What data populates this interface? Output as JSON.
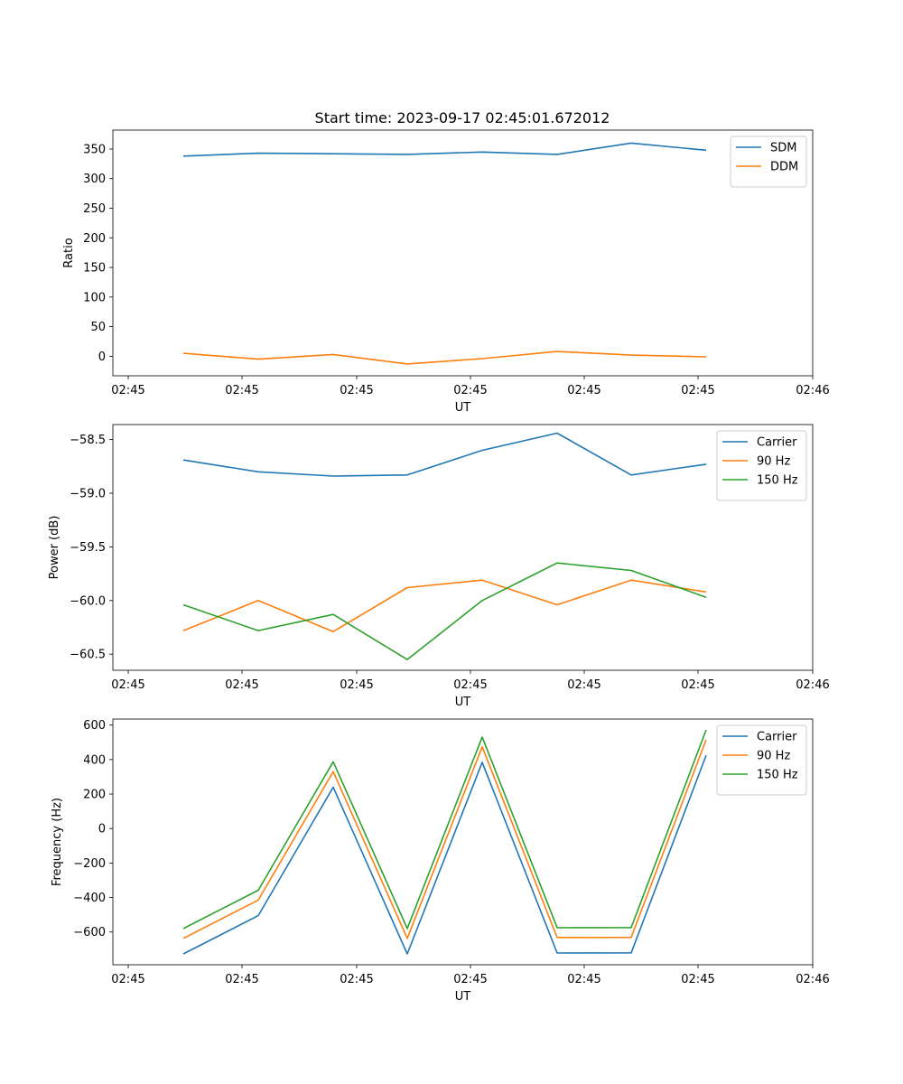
{
  "figure": {
    "title": "Start time: 2023-09-17 02:45:01.672012",
    "colors": {
      "blue": "#1f77b4",
      "orange": "#ff7f0e",
      "green": "#2ca02c"
    }
  },
  "chart_data": [
    {
      "type": "line",
      "title": "Start time: 2023-09-17 02:45:01.672012",
      "xlabel": "UT",
      "ylabel": "Ratio",
      "xtick_labels": [
        "02:45",
        "02:45",
        "02:45",
        "02:45",
        "02:45",
        "02:45",
        "02:46"
      ],
      "ylim": [
        -33,
        382
      ],
      "yticks": [
        0,
        50,
        100,
        150,
        200,
        250,
        300,
        350
      ],
      "ytick_labels": [
        "0",
        "50",
        "100",
        "150",
        "200",
        "250",
        "300",
        "350"
      ],
      "legend_position": "upper-right",
      "series": [
        {
          "name": "SDM",
          "color": "#1f77b4",
          "values": [
            338,
            343,
            342,
            341,
            345,
            341,
            360,
            348
          ]
        },
        {
          "name": "DDM",
          "color": "#ff7f0e",
          "values": [
            5,
            -5,
            3,
            -13,
            -4,
            8,
            2,
            -1
          ]
        }
      ]
    },
    {
      "type": "line",
      "title": "",
      "xlabel": "UT",
      "ylabel": "Power (dB)",
      "xtick_labels": [
        "02:45",
        "02:45",
        "02:45",
        "02:45",
        "02:45",
        "02:45",
        "02:46"
      ],
      "ylim": [
        -60.65,
        -58.36
      ],
      "yticks": [
        -58.5,
        -59.0,
        -59.5,
        -60.0,
        -60.5
      ],
      "ytick_labels": [
        "−58.5",
        "−59.0",
        "−59.5",
        "−60.0",
        "−60.5"
      ],
      "legend_position": "upper-right",
      "series": [
        {
          "name": "Carrier",
          "color": "#1f77b4",
          "values": [
            -58.69,
            -58.8,
            -58.84,
            -58.83,
            -58.6,
            -58.44,
            -58.83,
            -58.73
          ]
        },
        {
          "name": "90 Hz",
          "color": "#ff7f0e",
          "values": [
            -60.28,
            -60.0,
            -60.29,
            -59.88,
            -59.81,
            -60.04,
            -59.81,
            -59.92
          ]
        },
        {
          "name": "150 Hz",
          "color": "#2ca02c",
          "values": [
            -60.04,
            -60.28,
            -60.13,
            -60.55,
            -60.0,
            -59.65,
            -59.72,
            -59.97
          ]
        }
      ]
    },
    {
      "type": "line",
      "title": "",
      "xlabel": "UT",
      "ylabel": "Frequency (Hz)",
      "xtick_labels": [
        "02:45",
        "02:45",
        "02:45",
        "02:45",
        "02:45",
        "02:45",
        "02:46"
      ],
      "ylim": [
        -790,
        635
      ],
      "yticks": [
        600,
        400,
        200,
        0,
        -200,
        -400,
        -600
      ],
      "ytick_labels": [
        "600",
        "400",
        "200",
        "0",
        "−200",
        "−400",
        "−600"
      ],
      "legend_position": "upper-right",
      "series": [
        {
          "name": "Carrier",
          "color": "#1f77b4",
          "values": [
            -727,
            -505,
            240,
            -727,
            384,
            -722,
            -721,
            425
          ]
        },
        {
          "name": "90 Hz",
          "color": "#ff7f0e",
          "values": [
            -637,
            -415,
            330,
            -637,
            474,
            -632,
            -631,
            515
          ]
        },
        {
          "name": "150 Hz",
          "color": "#2ca02c",
          "values": [
            -580,
            -358,
            387,
            -580,
            531,
            -575,
            -574,
            572
          ]
        }
      ]
    }
  ]
}
